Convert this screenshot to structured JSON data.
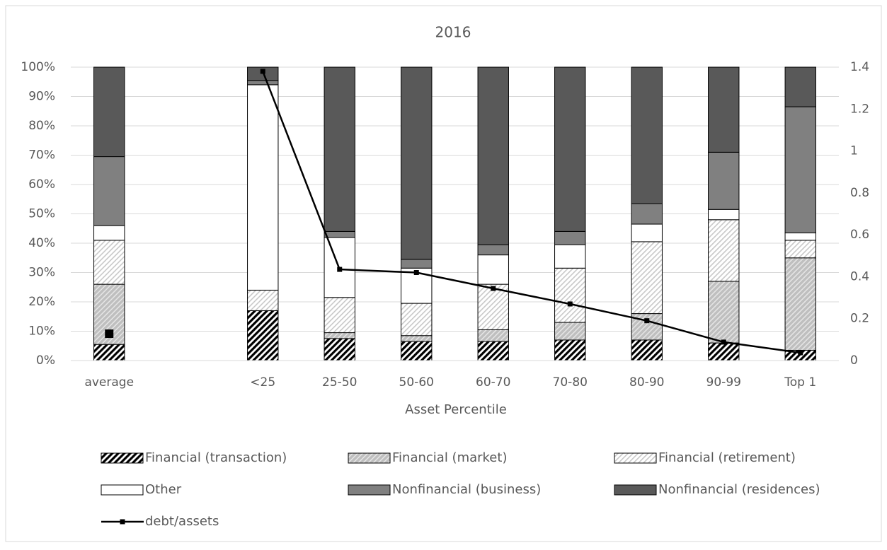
{
  "chart_data": {
    "type": "bar",
    "stacked": true,
    "title": "2016",
    "x_label": "Asset Percentile",
    "categories": [
      "average",
      null,
      "<25",
      "25-50",
      "50-60",
      "60-70",
      "70-80",
      "80-90",
      "90-99",
      "Top 1"
    ],
    "ylim": [
      0,
      100
    ],
    "yticks": [
      {
        "value": 0,
        "label": "0%"
      },
      {
        "value": 10,
        "label": "10%"
      },
      {
        "value": 20,
        "label": "20%"
      },
      {
        "value": 30,
        "label": "30%"
      },
      {
        "value": 40,
        "label": "40%"
      },
      {
        "value": 50,
        "label": "50%"
      },
      {
        "value": 60,
        "label": "60%"
      },
      {
        "value": 70,
        "label": "70%"
      },
      {
        "value": 80,
        "label": "80%"
      },
      {
        "value": 90,
        "label": "90%"
      },
      {
        "value": 100,
        "label": "100%"
      }
    ],
    "y2lim": [
      0,
      1.4
    ],
    "y2ticks": [
      0,
      0.2,
      0.4,
      0.6,
      0.8,
      1,
      1.2,
      1.4
    ],
    "grid": true,
    "legend": "bottom",
    "series": [
      {
        "name": "Financial (transaction)",
        "color": "#000000",
        "pattern": "dense-hatch",
        "values": [
          5.5,
          null,
          17,
          7.5,
          6.5,
          6.5,
          7,
          7,
          6,
          3.5
        ]
      },
      {
        "name": "Financial (market)",
        "color": "#a6a6a6",
        "pattern": "gray-hatch",
        "values": [
          20.5,
          null,
          0,
          2,
          2,
          4,
          6,
          9,
          21,
          31.5
        ]
      },
      {
        "name": "Financial (retirement)",
        "color": "#bfbfbf",
        "pattern": "light-hatch",
        "values": [
          15,
          null,
          7,
          12,
          11,
          15.5,
          18.5,
          24.5,
          21,
          6
        ]
      },
      {
        "name": "Other",
        "color": "#ffffff",
        "values": [
          5,
          null,
          70,
          20.5,
          12,
          10,
          8,
          6,
          3.5,
          2.5
        ]
      },
      {
        "name": "Nonfinancial (business)",
        "color": "#808080",
        "values": [
          23.5,
          null,
          1.5,
          2,
          3,
          3.5,
          4.5,
          7,
          19.5,
          43
        ]
      },
      {
        "name": "Nonfinancial (residences)",
        "color": "#595959",
        "values": [
          30.5,
          null,
          4.5,
          56,
          65.5,
          60.5,
          56,
          46.5,
          29,
          13.5
        ]
      },
      {
        "name": "debt/assets",
        "type": "line",
        "axis": "y2",
        "color": "#000000",
        "values": [
          0.128,
          null,
          1.38,
          0.435,
          0.42,
          0.344,
          0.27,
          0.19,
          0.088,
          0.037
        ]
      }
    ]
  }
}
